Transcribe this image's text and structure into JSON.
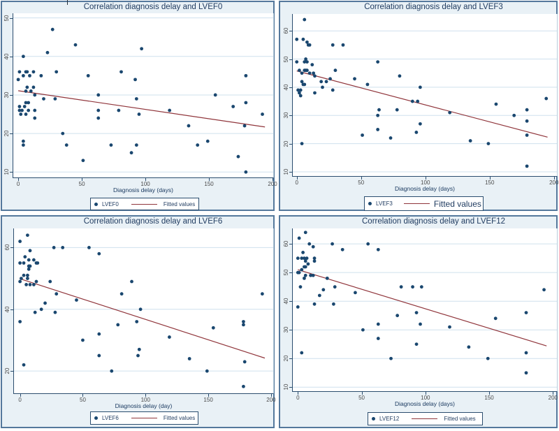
{
  "colors": {
    "panel_bg": "#e9f1f6",
    "panel_border": "#54789c",
    "plot_bg": "#ffffff",
    "gridline": "#cfe0ee",
    "dot": "#1a476f",
    "fit_line": "#90353b",
    "title_text": "#1e3a5f",
    "tick_text": "#4a4a4a",
    "axis_line": "#2b4d6e"
  },
  "chart_data": [
    {
      "type": "scatter",
      "title": "Correlation diagnosis delay and LVEF0",
      "xlabel": "Diagnosis delay (days)",
      "ylabel": "",
      "series_label": "LVEF0",
      "fit_label": "Fitted values",
      "legend_position": "bottom",
      "grid": "horizontal",
      "x_ticks": [
        0,
        50,
        100,
        150,
        200
      ],
      "y_ticks": [
        10,
        20,
        30,
        40,
        50
      ],
      "xlim": [
        -3.9,
        200.5
      ],
      "ylim": [
        8.6,
        51.2
      ],
      "points": [
        [
          0,
          34
        ],
        [
          1,
          36
        ],
        [
          4,
          40
        ],
        [
          4,
          35
        ],
        [
          6,
          36
        ],
        [
          7,
          36
        ],
        [
          9,
          35
        ],
        [
          12,
          36
        ],
        [
          18,
          35
        ],
        [
          6,
          31
        ],
        [
          7,
          32
        ],
        [
          10,
          31
        ],
        [
          12,
          32
        ],
        [
          13,
          30
        ],
        [
          20,
          29
        ],
        [
          29,
          29
        ],
        [
          6,
          28
        ],
        [
          8,
          28
        ],
        [
          5,
          27
        ],
        [
          1,
          27
        ],
        [
          1,
          26
        ],
        [
          3,
          26
        ],
        [
          8,
          26
        ],
        [
          2,
          25
        ],
        [
          6,
          25
        ],
        [
          13,
          26
        ],
        [
          13,
          24
        ],
        [
          4,
          18
        ],
        [
          4,
          17
        ],
        [
          23,
          41
        ],
        [
          27,
          47
        ],
        [
          30,
          36
        ],
        [
          35,
          20
        ],
        [
          38,
          17
        ],
        [
          45,
          43
        ],
        [
          51,
          13
        ],
        [
          55,
          35
        ],
        [
          63,
          30
        ],
        [
          63,
          26
        ],
        [
          63,
          24
        ],
        [
          73,
          17
        ],
        [
          79,
          26
        ],
        [
          81,
          36
        ],
        [
          89,
          15
        ],
        [
          92,
          34
        ],
        [
          93,
          29
        ],
        [
          95,
          25
        ],
        [
          93,
          17
        ],
        [
          97,
          42
        ],
        [
          119,
          26
        ],
        [
          134,
          22
        ],
        [
          141,
          17
        ],
        [
          149,
          18
        ],
        [
          155,
          30
        ],
        [
          169,
          27
        ],
        [
          173,
          14
        ],
        [
          179,
          35
        ],
        [
          179,
          28
        ],
        [
          178,
          22
        ],
        [
          179,
          10
        ],
        [
          192,
          25
        ]
      ],
      "fit_line": {
        "x": [
          0,
          194
        ],
        "y": [
          31.1,
          21.7
        ]
      }
    },
    {
      "type": "scatter",
      "title": "Correlation diagnosis delay and LVEF3",
      "xlabel": "Diagnosis delay (days)",
      "ylabel": "",
      "series_label": "LVEF3",
      "fit_label": "Fitted values",
      "legend_position": "bottom",
      "grid": "horizontal",
      "x_ticks": [
        0,
        50,
        100,
        150,
        200
      ],
      "y_ticks": [
        10,
        20,
        30,
        40,
        50,
        60
      ],
      "xlim": [
        -3.1,
        202.3
      ],
      "ylim": [
        8.5,
        66.0
      ],
      "points": [
        [
          6,
          64
        ],
        [
          0,
          57
        ],
        [
          5,
          57
        ],
        [
          8,
          56
        ],
        [
          9,
          55
        ],
        [
          10,
          55
        ],
        [
          28,
          55
        ],
        [
          36,
          55
        ],
        [
          0,
          49
        ],
        [
          6,
          49
        ],
        [
          7,
          50
        ],
        [
          8,
          49
        ],
        [
          12,
          48
        ],
        [
          2,
          46
        ],
        [
          4,
          45
        ],
        [
          6,
          46
        ],
        [
          7,
          46
        ],
        [
          8,
          46
        ],
        [
          10,
          45
        ],
        [
          13,
          45
        ],
        [
          14,
          44
        ],
        [
          30,
          46
        ],
        [
          63,
          49
        ],
        [
          45,
          43
        ],
        [
          4,
          42
        ],
        [
          5,
          41
        ],
        [
          6,
          41
        ],
        [
          19,
          42
        ],
        [
          23,
          42
        ],
        [
          26,
          43
        ],
        [
          20,
          40
        ],
        [
          55,
          41
        ],
        [
          80,
          44
        ],
        [
          96,
          40
        ],
        [
          1,
          39
        ],
        [
          3,
          39
        ],
        [
          28,
          39
        ],
        [
          2,
          38
        ],
        [
          3,
          37
        ],
        [
          14,
          38
        ],
        [
          90,
          35
        ],
        [
          94,
          35
        ],
        [
          194,
          36
        ],
        [
          155,
          34
        ],
        [
          64,
          32
        ],
        [
          78,
          32
        ],
        [
          179,
          32
        ],
        [
          63,
          30
        ],
        [
          119,
          31
        ],
        [
          169,
          30
        ],
        [
          179,
          28
        ],
        [
          96,
          27
        ],
        [
          63,
          25
        ],
        [
          93,
          24
        ],
        [
          51,
          23
        ],
        [
          179,
          23
        ],
        [
          73,
          22
        ],
        [
          135,
          21
        ],
        [
          4,
          20
        ],
        [
          149,
          20
        ],
        [
          179,
          12
        ]
      ],
      "fit_line": {
        "x": [
          0,
          195
        ],
        "y": [
          45.8,
          22.3
        ]
      }
    },
    {
      "type": "scatter",
      "title": "Correlation diagnosis delay and LVEF6",
      "xlabel": "Diagnosis delay (day)",
      "ylabel": "",
      "series_label": "LVEF6",
      "fit_label": "Fitted values",
      "legend_position": "bottom",
      "grid": "horizontal",
      "x_ticks": [
        0,
        50,
        100,
        150,
        200
      ],
      "y_ticks": [
        20,
        40,
        60
      ],
      "xlim": [
        -4.8,
        201.7
      ],
      "ylim": [
        12.8,
        66.2
      ],
      "points": [
        [
          6,
          64
        ],
        [
          0,
          62
        ],
        [
          8,
          59
        ],
        [
          27,
          60
        ],
        [
          34,
          60
        ],
        [
          55,
          60
        ],
        [
          63,
          58
        ],
        [
          4,
          57
        ],
        [
          7,
          56
        ],
        [
          11,
          56
        ],
        [
          13,
          55
        ],
        [
          0,
          55
        ],
        [
          3,
          55
        ],
        [
          14,
          55
        ],
        [
          7,
          54
        ],
        [
          8,
          54
        ],
        [
          7,
          53
        ],
        [
          3,
          51
        ],
        [
          6,
          51
        ],
        [
          6,
          50
        ],
        [
          1,
          50
        ],
        [
          0,
          49
        ],
        [
          5,
          48
        ],
        [
          8,
          48
        ],
        [
          11,
          48
        ],
        [
          13,
          49
        ],
        [
          24,
          49
        ],
        [
          89,
          49
        ],
        [
          29,
          45
        ],
        [
          81,
          45
        ],
        [
          193,
          45
        ],
        [
          45,
          43
        ],
        [
          20,
          42
        ],
        [
          17,
          40
        ],
        [
          96,
          40
        ],
        [
          12,
          39
        ],
        [
          28,
          39
        ],
        [
          0,
          36
        ],
        [
          93,
          36
        ],
        [
          178,
          36
        ],
        [
          178,
          35
        ],
        [
          78,
          35
        ],
        [
          154,
          34
        ],
        [
          63,
          32
        ],
        [
          119,
          31
        ],
        [
          50,
          30
        ],
        [
          95,
          27
        ],
        [
          94,
          25
        ],
        [
          63,
          25
        ],
        [
          135,
          24
        ],
        [
          179,
          23
        ],
        [
          3,
          22
        ],
        [
          73,
          20
        ],
        [
          149,
          20
        ],
        [
          178,
          15
        ]
      ],
      "fit_line": {
        "x": [
          0,
          195
        ],
        "y": [
          49.9,
          24.2
        ]
      }
    },
    {
      "type": "scatter",
      "title": "Correlation diagnosis delay and LVEF12",
      "xlabel": "Diagnosis delay (days)",
      "ylabel": "",
      "series_label": "LVEF12",
      "fit_label": "Fitted values",
      "legend_position": "bottom",
      "grid": "horizontal",
      "x_ticks": [
        0,
        50,
        100,
        150,
        200
      ],
      "y_ticks": [
        10,
        20,
        30,
        40,
        50,
        60
      ],
      "xlim": [
        -4.0,
        203.1
      ],
      "ylim": [
        8.6,
        65.4
      ],
      "points": [
        [
          6,
          64
        ],
        [
          1,
          62
        ],
        [
          9,
          60
        ],
        [
          12,
          59
        ],
        [
          27,
          60
        ],
        [
          55,
          60
        ],
        [
          4,
          57
        ],
        [
          35,
          58
        ],
        [
          63,
          58
        ],
        [
          0,
          55
        ],
        [
          3,
          55
        ],
        [
          5,
          55
        ],
        [
          6,
          54
        ],
        [
          7,
          55
        ],
        [
          13,
          55
        ],
        [
          13,
          54
        ],
        [
          5,
          52
        ],
        [
          6,
          52
        ],
        [
          8,
          53
        ],
        [
          3,
          51
        ],
        [
          0,
          50
        ],
        [
          1,
          50
        ],
        [
          6,
          49
        ],
        [
          10,
          49
        ],
        [
          12,
          49
        ],
        [
          5,
          48
        ],
        [
          23,
          48
        ],
        [
          2,
          45
        ],
        [
          20,
          44
        ],
        [
          29,
          45
        ],
        [
          81,
          45
        ],
        [
          90,
          45
        ],
        [
          97,
          45
        ],
        [
          193,
          44
        ],
        [
          45,
          43
        ],
        [
          17,
          42
        ],
        [
          0,
          38
        ],
        [
          13,
          39
        ],
        [
          28,
          39
        ],
        [
          93,
          36
        ],
        [
          179,
          36
        ],
        [
          78,
          35
        ],
        [
          155,
          34
        ],
        [
          63,
          32
        ],
        [
          96,
          32
        ],
        [
          119,
          31
        ],
        [
          51,
          30
        ],
        [
          63,
          27
        ],
        [
          93,
          25
        ],
        [
          134,
          24
        ],
        [
          3,
          22
        ],
        [
          179,
          22
        ],
        [
          73,
          20
        ],
        [
          149,
          20
        ],
        [
          179,
          15
        ]
      ],
      "fit_line": {
        "x": [
          0,
          195
        ],
        "y": [
          51.0,
          24.4
        ]
      }
    }
  ]
}
